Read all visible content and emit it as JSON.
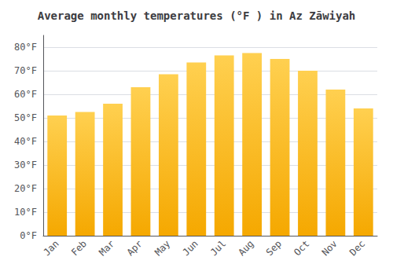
{
  "chart_data": {
    "type": "bar",
    "title": "Average monthly temperatures (°F ) in Az Zāwiyah",
    "categories": [
      "Jan",
      "Feb",
      "Mar",
      "Apr",
      "May",
      "Jun",
      "Jul",
      "Aug",
      "Sep",
      "Oct",
      "Nov",
      "Dec"
    ],
    "values": [
      51,
      52.5,
      56,
      63,
      68.5,
      73.5,
      76.5,
      77.5,
      75,
      70,
      62,
      54
    ],
    "color": "#F5A800",
    "ylim": [
      0,
      85
    ],
    "yticks": [
      {
        "value": 0,
        "label": "0°F"
      },
      {
        "value": 10,
        "label": "10°F"
      },
      {
        "value": 20,
        "label": "20°F"
      },
      {
        "value": 30,
        "label": "30°F"
      },
      {
        "value": 40,
        "label": "40°F"
      },
      {
        "value": 50,
        "label": "50°F"
      },
      {
        "value": 60,
        "label": "60°F"
      },
      {
        "value": 70,
        "label": "70°F"
      },
      {
        "value": 80,
        "label": "80°F"
      }
    ],
    "grid": true
  }
}
